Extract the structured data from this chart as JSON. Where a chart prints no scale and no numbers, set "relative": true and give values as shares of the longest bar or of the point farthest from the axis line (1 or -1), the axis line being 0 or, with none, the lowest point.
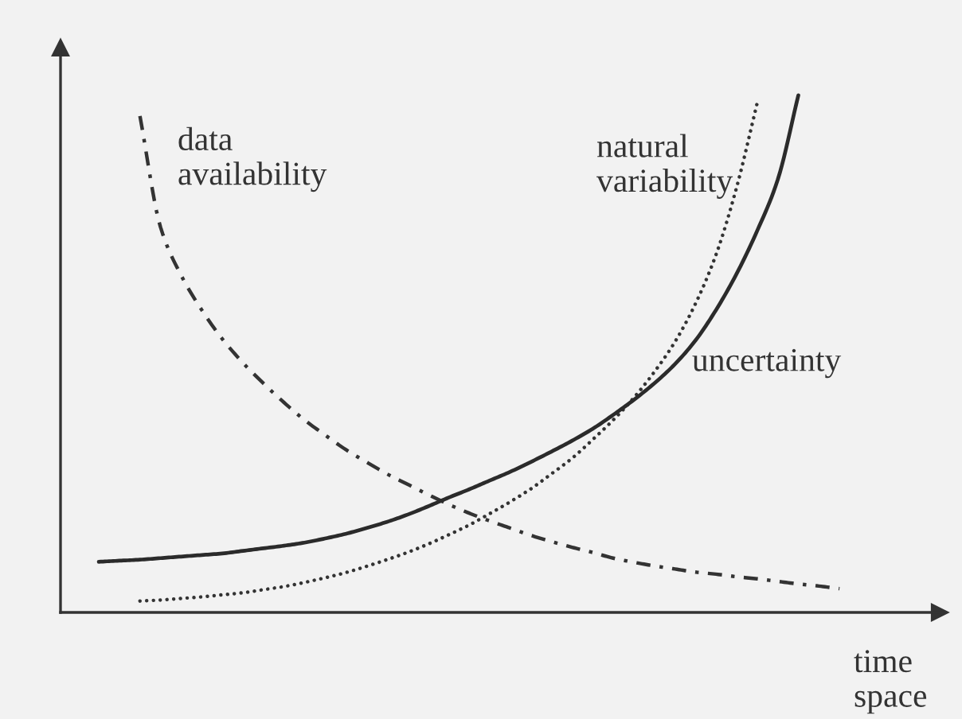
{
  "chart_data": {
    "type": "line",
    "relative": true,
    "xlabel": "time\nspace",
    "categories": [
      null,
      null,
      null,
      null,
      null,
      null,
      null,
      null,
      null,
      null,
      null,
      null,
      null,
      null,
      null,
      null,
      null,
      null,
      null,
      null,
      null,
      null,
      null,
      null,
      null,
      null,
      null,
      null,
      null,
      null,
      null,
      null,
      null,
      null,
      null,
      null,
      null
    ],
    "series": [
      {
        "name": "data\navailability",
        "color": "#333333",
        "line_style": "dashdot",
        "values": [
          null,
          null,
          0.96,
          0.745,
          0.652,
          0.585,
          0.529,
          0.483,
          0.443,
          0.406,
          0.372,
          0.343,
          0.315,
          0.291,
          0.268,
          0.248,
          0.228,
          0.209,
          0.192,
          0.177,
          0.163,
          0.149,
          0.137,
          0.126,
          0.116,
          0.105,
          0.097,
          0.09,
          0.084,
          0.078,
          0.074,
          0.069,
          0.065,
          0.06,
          0.055,
          0.051,
          0.046
        ]
      },
      {
        "name": "natural\nvariability",
        "color": "#333333",
        "line_style": "dotted",
        "values": [
          null,
          null,
          0.022,
          0.024,
          0.027,
          0.03,
          0.034,
          0.038,
          0.044,
          0.05,
          0.058,
          0.067,
          0.077,
          0.089,
          0.102,
          0.116,
          0.132,
          0.15,
          0.169,
          0.191,
          0.214,
          0.239,
          0.268,
          0.298,
          0.334,
          0.372,
          0.415,
          0.465,
          0.523,
          0.597,
          0.692,
          0.822,
          0.985,
          null,
          null,
          null,
          null
        ]
      },
      {
        "name": "uncertainty",
        "color": "#2b2b2b",
        "line_style": "solid",
        "values": [
          0.098,
          0.1,
          0.102,
          0.105,
          0.108,
          0.111,
          0.114,
          0.119,
          0.124,
          0.129,
          0.135,
          0.143,
          0.152,
          0.163,
          0.175,
          0.189,
          0.205,
          0.222,
          0.238,
          0.255,
          0.272,
          0.291,
          0.311,
          0.332,
          0.355,
          0.382,
          0.411,
          0.443,
          0.48,
          0.526,
          0.585,
          0.655,
          0.738,
          0.837,
          1.0,
          null,
          null
        ]
      }
    ]
  }
}
